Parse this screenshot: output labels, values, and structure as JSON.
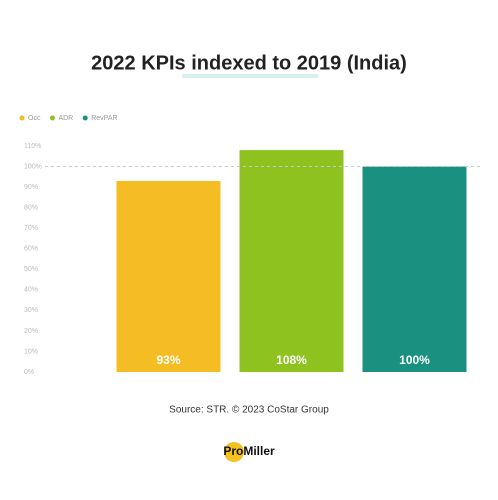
{
  "chart_data": {
    "type": "bar",
    "title": "2022 KPIs indexed to 2019 (India)",
    "categories": [
      "Occ",
      "ADR",
      "RevPAR"
    ],
    "values": [
      93,
      108,
      100
    ],
    "value_labels": [
      "93%",
      "108%",
      "100%"
    ],
    "colors": [
      "#f4bd23",
      "#8dc21f",
      "#1a9080"
    ],
    "ylim": [
      0,
      110
    ],
    "yticks": [
      {
        "value": 0,
        "label": "0%"
      },
      {
        "value": 10,
        "label": "10%"
      },
      {
        "value": 20,
        "label": "20%"
      },
      {
        "value": 30,
        "label": "30%"
      },
      {
        "value": 40,
        "label": "40%"
      },
      {
        "value": 50,
        "label": "50%"
      },
      {
        "value": 60,
        "label": "60%"
      },
      {
        "value": 70,
        "label": "70%"
      },
      {
        "value": 80,
        "label": "80%"
      },
      {
        "value": 90,
        "label": "90%"
      },
      {
        "value": 100,
        "label": "100%"
      },
      {
        "value": 110,
        "label": "110%"
      }
    ],
    "reference_line": 100,
    "legend": "top-left",
    "source": "Source: STR. © 2023 CoStar Group"
  },
  "logo": "ProMiller"
}
